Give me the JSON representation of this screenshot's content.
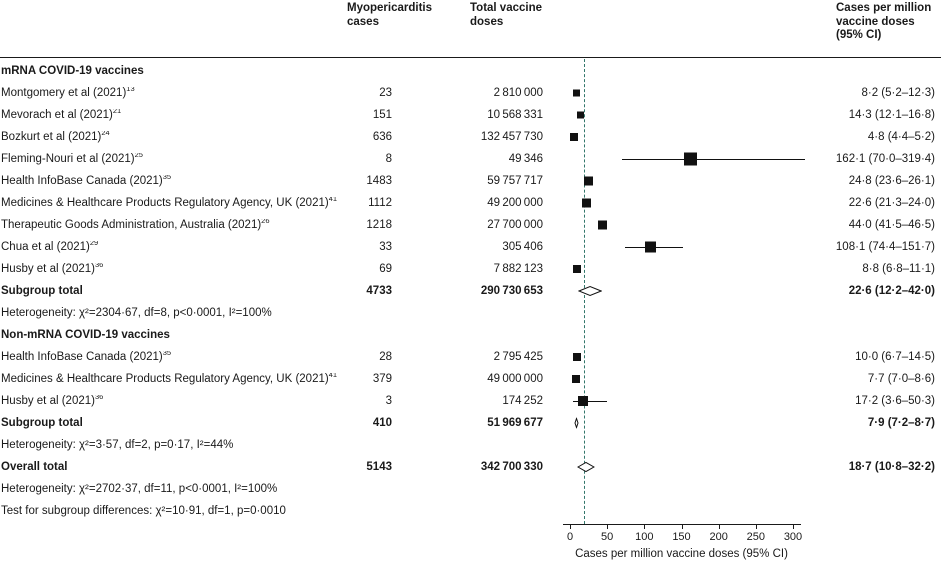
{
  "header": {
    "col_cases": "Myopericarditis cases",
    "col_doses": "Total vaccine doses",
    "col_estimate": "Cases per million vaccine doses (95% CI)"
  },
  "axis": {
    "min": 0,
    "max": 300,
    "ticks": [
      0,
      50,
      100,
      150,
      200,
      250,
      300
    ],
    "label": "Cases per million vaccine doses (95% CI)",
    "ref_line_value": 18.7,
    "ref_line_color": "#33776b"
  },
  "chart_data": {
    "type": "forest",
    "x_unit": "cases per million vaccine doses",
    "xlim": [
      0,
      300
    ],
    "reference_line": 18.7,
    "groups": [
      {
        "title": "mRNA COVID-19 vaccines",
        "studies": [
          {
            "label": "Montgomery et al (2021)",
            "ref": "13",
            "cases": "23",
            "doses": "2 810 000",
            "est": 8.2,
            "lo": 5.2,
            "hi": 12.3,
            "ci_text": "8·2 (5·2–12·3)",
            "size": 7
          },
          {
            "label": "Mevorach et al (2021)",
            "ref": "21",
            "cases": "151",
            "doses": "10 568 331",
            "est": 14.3,
            "lo": 12.1,
            "hi": 16.8,
            "ci_text": "14·3 (12·1–16·8)",
            "size": 7
          },
          {
            "label": "Bozkurt et al (2021)",
            "ref": "24",
            "cases": "636",
            "doses": "132 457 730",
            "est": 4.8,
            "lo": 4.4,
            "hi": 5.2,
            "ci_text": "4·8 (4·4–5·2)",
            "size": 8
          },
          {
            "label": "Fleming-Nouri et al (2021)",
            "ref": "25",
            "cases": "8",
            "doses": "49 346",
            "est": 162.1,
            "lo": 70.0,
            "hi": 319.4,
            "ci_text": "162·1 (70·0–319·4)",
            "size": 13
          },
          {
            "label": "Health InfoBase Canada (2021)",
            "ref": "35",
            "cases": "1483",
            "doses": "59 757 717",
            "est": 24.8,
            "lo": 23.6,
            "hi": 26.1,
            "ci_text": "24·8 (23·6–26·1)",
            "size": 9
          },
          {
            "label": "Medicines & Healthcare Products Regulatory Agency, UK (2021)",
            "ref": "41",
            "cases": "1112",
            "doses": "49 200 000",
            "est": 22.6,
            "lo": 21.3,
            "hi": 24.0,
            "ci_text": "22·6 (21·3–24·0)",
            "size": 9
          },
          {
            "label": "Therapeutic Goods Administration, Australia (2021)",
            "ref": "26",
            "cases": "1218",
            "doses": "27 700 000",
            "est": 44.0,
            "lo": 41.5,
            "hi": 46.5,
            "ci_text": "44·0 (41·5–46·5)",
            "size": 9
          },
          {
            "label": "Chua et al (2021)",
            "ref": "29",
            "cases": "33",
            "doses": "305 406",
            "est": 108.1,
            "lo": 74.4,
            "hi": 151.7,
            "ci_text": "108·1 (74·4–151·7)",
            "size": 11
          },
          {
            "label": "Husby et al (2021)",
            "ref": "36",
            "cases": "69",
            "doses": "7 882 123",
            "est": 8.8,
            "lo": 6.8,
            "hi": 11.1,
            "ci_text": "8·8 (6·8–11·1)",
            "size": 8
          }
        ],
        "subtotal": {
          "label": "Subgroup total",
          "cases": "4733",
          "doses": "290 730 653",
          "est": 22.6,
          "lo": 12.2,
          "hi": 42.0,
          "ci_text": "22·6 (12·2–42·0)"
        },
        "heterogeneity": "Heterogeneity: χ²=2304·67, df=8, p<0·0001, I²=100%"
      },
      {
        "title": "Non-mRNA COVID-19 vaccines",
        "studies": [
          {
            "label": "Health InfoBase Canada (2021)",
            "ref": "35",
            "cases": "28",
            "doses": "2 795 425",
            "est": 10.0,
            "lo": 6.7,
            "hi": 14.5,
            "ci_text": "10·0 (6·7–14·5)",
            "size": 8
          },
          {
            "label": "Medicines & Healthcare Products Regulatory Agency, UK (2021)",
            "ref": "41",
            "cases": "379",
            "doses": "49 000 000",
            "est": 7.7,
            "lo": 7.0,
            "hi": 8.6,
            "ci_text": "7·7 (7·0–8·6)",
            "size": 8
          },
          {
            "label": "Husby et al (2021)",
            "ref": "36",
            "cases": "3",
            "doses": "174 252",
            "est": 17.2,
            "lo": 3.6,
            "hi": 50.3,
            "ci_text": "17·2 (3·6–50·3)",
            "size": 10
          }
        ],
        "subtotal": {
          "label": "Subgroup total",
          "cases": "410",
          "doses": "51 969 677",
          "est": 7.9,
          "lo": 7.2,
          "hi": 8.7,
          "ci_text": "7·9 (7·2–8·7)"
        },
        "heterogeneity": "Heterogeneity: χ²=3·57, df=2, p=0·17, I²=44%"
      }
    ],
    "overall": {
      "label": "Overall total",
      "cases": "5143",
      "doses": "342 700 330",
      "est": 18.7,
      "lo": 10.8,
      "hi": 32.2,
      "ci_text": "18·7 (10·8–32·2)"
    },
    "overall_heterogeneity": "Heterogeneity: χ²=2702·37, df=11, p<0·0001, I²=100%",
    "subgroup_test": "Test for subgroup differences: χ²=10·91, df=1, p=0·0010"
  }
}
